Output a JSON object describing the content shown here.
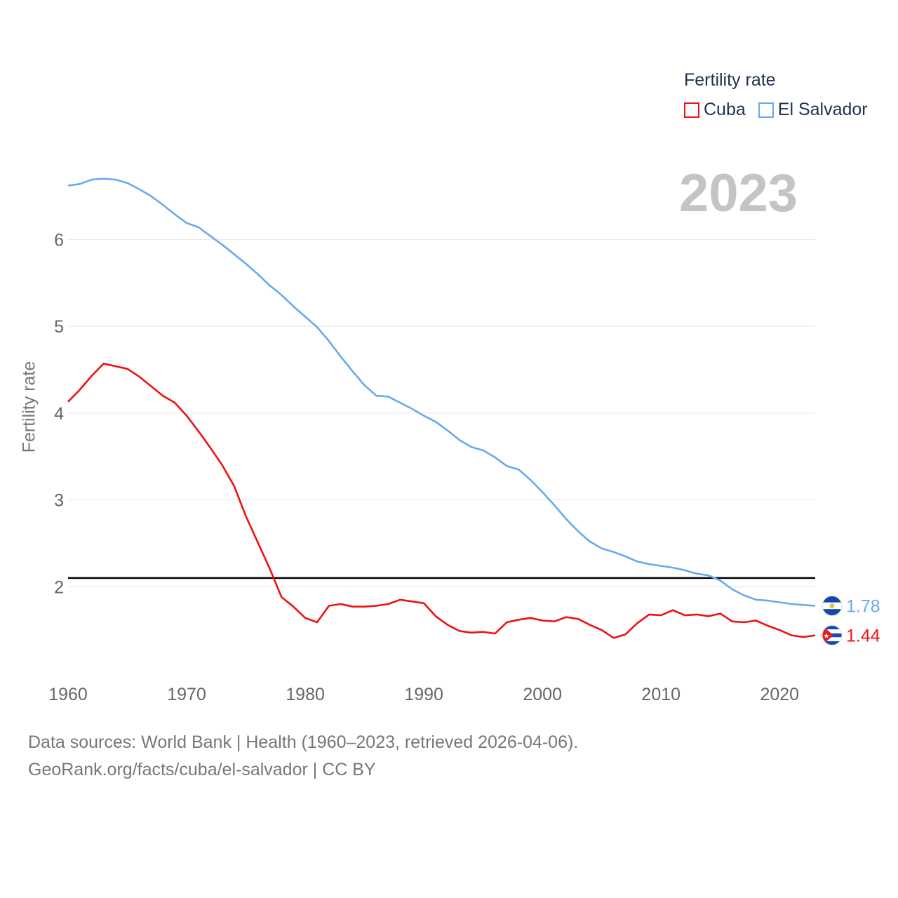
{
  "legend": {
    "title": "Fertility rate",
    "items": [
      {
        "label": "Cuba",
        "color": "#ee1111"
      },
      {
        "label": "El Salvador",
        "color": "#66aaee"
      }
    ]
  },
  "year_label": "2023",
  "source_line1": "Data sources: World Bank | Health (1960–2023, retrieved 2026-04-06).",
  "source_line2": "GeoRank.org/facts/cuba/el-salvador | CC BY",
  "chart_data": {
    "type": "line",
    "title": "",
    "xlabel": "",
    "ylabel": "Fertility rate",
    "xlim": [
      1960,
      2023
    ],
    "ylim": [
      1.0,
      6.9
    ],
    "xticks": [
      1960,
      1970,
      1980,
      1990,
      2000,
      2010,
      2020
    ],
    "yticks": [
      2,
      3,
      4,
      5,
      6
    ],
    "reference_line": {
      "y": 2.1,
      "color": "#000000"
    },
    "x": [
      1960,
      1961,
      1962,
      1963,
      1964,
      1965,
      1966,
      1967,
      1968,
      1969,
      1970,
      1971,
      1972,
      1973,
      1974,
      1975,
      1976,
      1977,
      1978,
      1979,
      1980,
      1981,
      1982,
      1983,
      1984,
      1985,
      1986,
      1987,
      1988,
      1989,
      1990,
      1991,
      1992,
      1993,
      1994,
      1995,
      1996,
      1997,
      1998,
      1999,
      2000,
      2001,
      2002,
      2003,
      2004,
      2005,
      2006,
      2007,
      2008,
      2009,
      2010,
      2011,
      2012,
      2013,
      2014,
      2015,
      2016,
      2017,
      2018,
      2019,
      2020,
      2021,
      2022,
      2023
    ],
    "series": [
      {
        "name": "Cuba",
        "color": "#ee1111",
        "end_label": "1.44",
        "values": [
          4.13,
          4.27,
          4.43,
          4.57,
          4.54,
          4.51,
          4.42,
          4.31,
          4.2,
          4.12,
          3.97,
          3.79,
          3.6,
          3.4,
          3.16,
          2.81,
          2.51,
          2.21,
          1.88,
          1.77,
          1.64,
          1.59,
          1.78,
          1.8,
          1.77,
          1.77,
          1.78,
          1.8,
          1.85,
          1.83,
          1.81,
          1.66,
          1.56,
          1.49,
          1.47,
          1.48,
          1.46,
          1.59,
          1.62,
          1.64,
          1.61,
          1.6,
          1.65,
          1.63,
          1.56,
          1.5,
          1.41,
          1.45,
          1.58,
          1.68,
          1.67,
          1.73,
          1.67,
          1.68,
          1.66,
          1.69,
          1.6,
          1.59,
          1.61,
          1.55,
          1.5,
          1.44,
          1.42,
          1.44
        ]
      },
      {
        "name": "El Salvador",
        "color": "#66aaee",
        "end_label": "1.78",
        "values": [
          6.62,
          6.64,
          6.69,
          6.7,
          6.69,
          6.65,
          6.58,
          6.5,
          6.4,
          6.29,
          6.19,
          6.14,
          6.04,
          5.94,
          5.83,
          5.72,
          5.6,
          5.47,
          5.36,
          5.23,
          5.11,
          4.99,
          4.83,
          4.65,
          4.48,
          4.32,
          4.2,
          4.19,
          4.12,
          4.05,
          3.97,
          3.9,
          3.8,
          3.69,
          3.61,
          3.57,
          3.49,
          3.39,
          3.35,
          3.23,
          3.09,
          2.94,
          2.78,
          2.64,
          2.52,
          2.44,
          2.4,
          2.35,
          2.29,
          2.26,
          2.24,
          2.22,
          2.19,
          2.15,
          2.13,
          2.07,
          1.97,
          1.9,
          1.85,
          1.84,
          1.82,
          1.8,
          1.79,
          1.78
        ]
      }
    ]
  }
}
